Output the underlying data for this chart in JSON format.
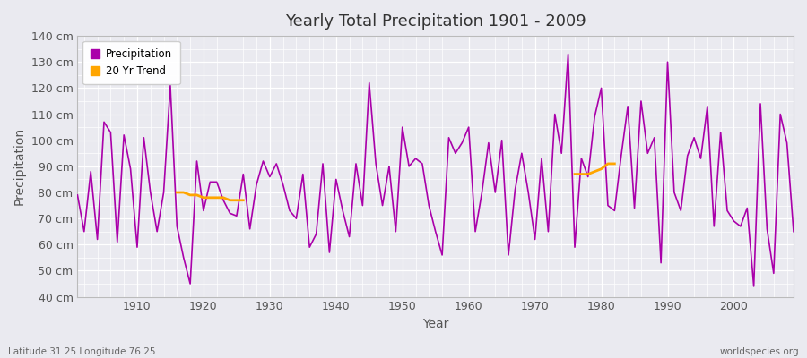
{
  "title": "Yearly Total Precipitation 1901 - 2009",
  "xlabel": "Year",
  "ylabel": "Precipitation",
  "x_label_bottom_left": "Latitude 31.25 Longitude 76.25",
  "x_label_bottom_right": "worldspecies.org",
  "ylim": [
    40,
    140
  ],
  "yticks": [
    40,
    50,
    60,
    70,
    80,
    90,
    100,
    110,
    120,
    130,
    140
  ],
  "ytick_labels": [
    "40 cm",
    "50 cm",
    "60 cm",
    "70 cm",
    "80 cm",
    "90 cm",
    "100 cm",
    "110 cm",
    "120 cm",
    "130 cm",
    "140 cm"
  ],
  "background_color": "#eaeaf0",
  "precipitation_color": "#aa00aa",
  "trend_color": "#ffa500",
  "legend_labels": [
    "Precipitation",
    "20 Yr Trend"
  ],
  "years": [
    1901,
    1902,
    1903,
    1904,
    1905,
    1906,
    1907,
    1908,
    1909,
    1910,
    1911,
    1912,
    1913,
    1914,
    1915,
    1916,
    1917,
    1918,
    1919,
    1920,
    1921,
    1922,
    1923,
    1924,
    1925,
    1926,
    1927,
    1928,
    1929,
    1930,
    1931,
    1932,
    1933,
    1934,
    1935,
    1936,
    1937,
    1938,
    1939,
    1940,
    1941,
    1942,
    1943,
    1944,
    1945,
    1946,
    1947,
    1948,
    1949,
    1950,
    1951,
    1952,
    1953,
    1954,
    1955,
    1956,
    1957,
    1958,
    1959,
    1960,
    1961,
    1962,
    1963,
    1964,
    1965,
    1966,
    1967,
    1968,
    1969,
    1970,
    1971,
    1972,
    1973,
    1974,
    1975,
    1976,
    1977,
    1978,
    1979,
    1980,
    1981,
    1982,
    1983,
    1984,
    1985,
    1986,
    1987,
    1988,
    1989,
    1990,
    1991,
    1992,
    1993,
    1994,
    1995,
    1996,
    1997,
    1998,
    1999,
    2000,
    2001,
    2002,
    2003,
    2004,
    2005,
    2006,
    2007,
    2008,
    2009
  ],
  "precipitation": [
    79,
    65,
    88,
    62,
    107,
    103,
    61,
    102,
    89,
    59,
    101,
    80,
    65,
    80,
    121,
    67,
    55,
    45,
    92,
    73,
    84,
    84,
    77,
    72,
    71,
    87,
    66,
    83,
    92,
    86,
    91,
    83,
    73,
    70,
    87,
    59,
    64,
    91,
    57,
    85,
    73,
    63,
    91,
    75,
    122,
    91,
    75,
    90,
    65,
    105,
    90,
    93,
    91,
    75,
    65,
    56,
    101,
    95,
    99,
    105,
    65,
    80,
    99,
    80,
    100,
    56,
    81,
    95,
    80,
    62,
    93,
    65,
    110,
    95,
    133,
    59,
    93,
    86,
    109,
    120,
    75,
    73,
    94,
    113,
    74,
    115,
    95,
    101,
    53,
    130,
    80,
    73,
    94,
    101,
    93,
    113,
    67,
    103,
    73,
    69,
    67,
    74,
    44,
    114,
    66,
    49,
    110,
    99,
    65
  ],
  "trend_segment1_years": [
    1916,
    1917,
    1918,
    1919,
    1920,
    1921,
    1922,
    1923,
    1924,
    1925,
    1926
  ],
  "trend_segment1_values": [
    80,
    80,
    79,
    79,
    78,
    78,
    78,
    78,
    77,
    77,
    77
  ],
  "trend_segment2_years": [
    1976,
    1977,
    1978,
    1979,
    1980,
    1981,
    1982
  ],
  "trend_segment2_values": [
    87,
    87,
    87,
    88,
    89,
    91,
    91
  ]
}
